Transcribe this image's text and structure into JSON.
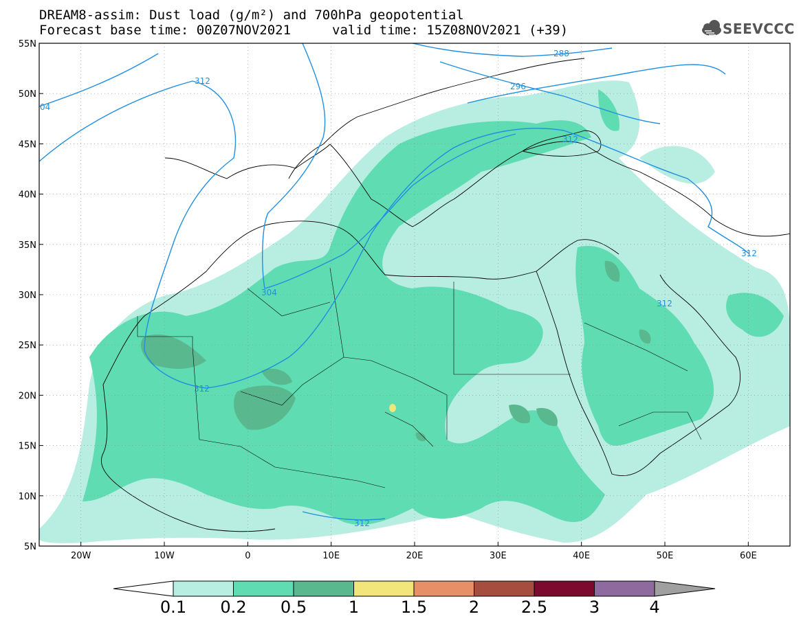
{
  "title": {
    "line1": "DREAM8-assim: Dust load (g/m²) and 700hPa geopotential",
    "line2_base": "Forecast base time: 00Z07NOV2021",
    "line2_valid": "valid time: 15Z08NOV2021 (+39)"
  },
  "logo": {
    "icon": "cloud-logo-icon",
    "text": "SEEVCCC"
  },
  "chart_data": {
    "type": "heatmap",
    "map_extent": {
      "lon": [
        -25,
        65
      ],
      "lat": [
        5,
        55
      ]
    },
    "lat_ticks": [
      "5N",
      "10N",
      "15N",
      "20N",
      "25N",
      "30N",
      "35N",
      "40N",
      "45N",
      "50N",
      "55N"
    ],
    "lon_ticks": [
      "20W",
      "10W",
      "0",
      "10E",
      "20E",
      "30E",
      "40E",
      "50E",
      "60E"
    ],
    "contour_labels": [
      "04",
      "312",
      "288",
      "296",
      "312",
      "304",
      "312",
      "312",
      "312",
      "312"
    ],
    "colorbar": {
      "levels": [
        "0.1",
        "0.2",
        "0.5",
        "1",
        "1.5",
        "2",
        "2.5",
        "3",
        "4"
      ],
      "colors": [
        "#b8ede2",
        "#5fdcb1",
        "#5ab88f",
        "#f2e57a",
        "#e79068",
        "#a64d40",
        "#7d0a2e",
        "#8f6a9e"
      ],
      "under_color": "#ffffff",
      "over_color": "#a0a0a0"
    },
    "contour_color": "#1f8fe0"
  }
}
